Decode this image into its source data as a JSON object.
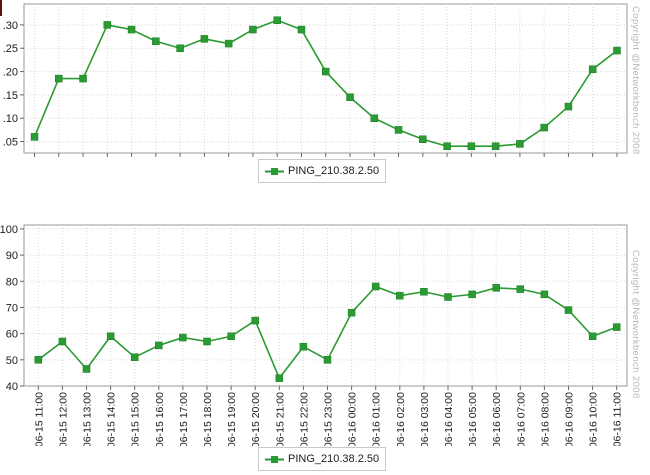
{
  "copyright_text": "Copyright @Networkbench 2008",
  "colors": {
    "series": "#2a9b32",
    "series_edge": "#1d7c26",
    "grid": "#d8d8d8",
    "plot_border": "#999999",
    "tick": "#666666",
    "label_text": "#1c1c1c",
    "copyright": "#b8b8b8",
    "legend_border": "#c9c9c9"
  },
  "chart_data": [
    {
      "type": "line",
      "title": "",
      "xlabel": "",
      "ylabel": "",
      "grid": true,
      "show_x_labels": false,
      "categories": [
        "06-15 11:00",
        "06-15 12:00",
        "06-15 13:00",
        "06-15 14:00",
        "06-15 15:00",
        "06-15 16:00",
        "06-15 17:00",
        "06-15 18:00",
        "06-15 19:00",
        "06-15 20:00",
        "06-15 21:00",
        "06-15 22:00",
        "06-15 23:00",
        "06-16 00:00",
        "06-16 01:00",
        "06-16 02:00",
        "06-16 03:00",
        "06-16 04:00",
        "06-16 05:00",
        "06-16 06:00",
        "06-16 07:00",
        "06-16 08:00",
        "06-16 09:00",
        "06-16 10:00",
        "06-16 11:00"
      ],
      "series": [
        {
          "name": "PING_210.38.2.50",
          "values": [
            0.06,
            0.185,
            0.185,
            0.3,
            0.29,
            0.265,
            0.25,
            0.27,
            0.26,
            0.29,
            0.31,
            0.29,
            0.2,
            0.145,
            0.1,
            0.075,
            0.055,
            0.04,
            0.04,
            0.04,
            0.045,
            0.08,
            0.125,
            0.205,
            0.245
          ]
        }
      ],
      "ytick_values": [
        0.05,
        0.1,
        0.15,
        0.2,
        0.25,
        0.3
      ],
      "ytick_labels": [
        ".05",
        ".10",
        ".15",
        ".20",
        ".25",
        ".30"
      ],
      "ylim": [
        0.0255,
        0.3448
      ],
      "legend": {
        "label": "PING_210.38.2.50",
        "position": "bottom"
      }
    },
    {
      "type": "line",
      "title": "",
      "xlabel": "",
      "ylabel": "",
      "grid": true,
      "show_x_labels": true,
      "categories": [
        "06-15 11:00",
        "06-15 12:00",
        "06-15 13:00",
        "06-15 14:00",
        "06-15 15:00",
        "06-15 16:00",
        "06-15 17:00",
        "06-15 18:00",
        "06-15 19:00",
        "06-15 20:00",
        "06-15 21:00",
        "06-15 22:00",
        "06-15 23:00",
        "06-16 00:00",
        "06-16 01:00",
        "06-16 02:00",
        "06-16 03:00",
        "06-16 04:00",
        "06-16 05:00",
        "06-16 06:00",
        "06-16 07:00",
        "06-16 08:00",
        "06-16 09:00",
        "06-16 10:00",
        "06-16 11:00"
      ],
      "series": [
        {
          "name": "PING_210.38.2.50",
          "values": [
            50,
            57,
            46.5,
            59,
            51,
            55.5,
            58.5,
            57,
            59,
            65,
            43,
            55,
            50,
            68,
            78,
            74.5,
            76,
            74,
            75,
            77.5,
            77,
            75,
            69,
            59,
            62.5
          ]
        }
      ],
      "ytick_values": [
        40,
        50,
        60,
        70,
        80,
        90,
        100
      ],
      "ytick_labels": [
        "40",
        "50",
        "60",
        "70",
        "80",
        "90",
        "100"
      ],
      "ylim": [
        40,
        101.5
      ],
      "legend": {
        "label": "PING_210.38.2.50",
        "position": "bottom"
      }
    }
  ]
}
